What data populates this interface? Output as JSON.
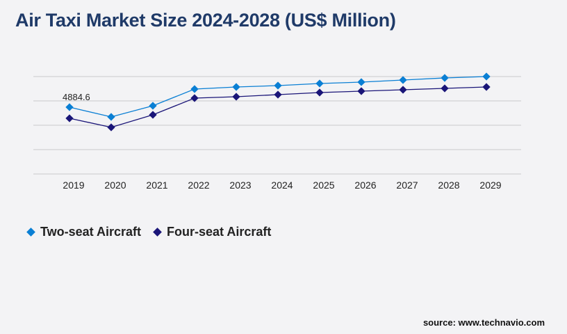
{
  "chart_data": {
    "type": "line",
    "title": "Air Taxi Market Size 2024-2028 (US$ Million)",
    "categories": [
      "2019",
      "2020",
      "2021",
      "2022",
      "2023",
      "2024",
      "2025",
      "2026",
      "2027",
      "2028",
      "2029"
    ],
    "series": [
      {
        "name": "Two-seat Aircraft",
        "color": "#0a7fd4",
        "values": [
          4884.6,
          4172,
          4986,
          6207,
          6360,
          6461,
          6614,
          6716,
          6868,
          7021,
          7123
        ]
      },
      {
        "name": "Four-seat Aircraft",
        "color": "#1a1578",
        "values": [
          4070,
          3409,
          4325,
          5546,
          5648,
          5801,
          5953,
          6055,
          6157,
          6259,
          6360
        ]
      }
    ],
    "annotations": [
      {
        "series": 0,
        "index": 0,
        "text": "4884.6"
      }
    ],
    "ylim": [
      0,
      7123
    ],
    "grid": true,
    "legend": "bottom-left"
  },
  "source": "source: www.technavio.com"
}
